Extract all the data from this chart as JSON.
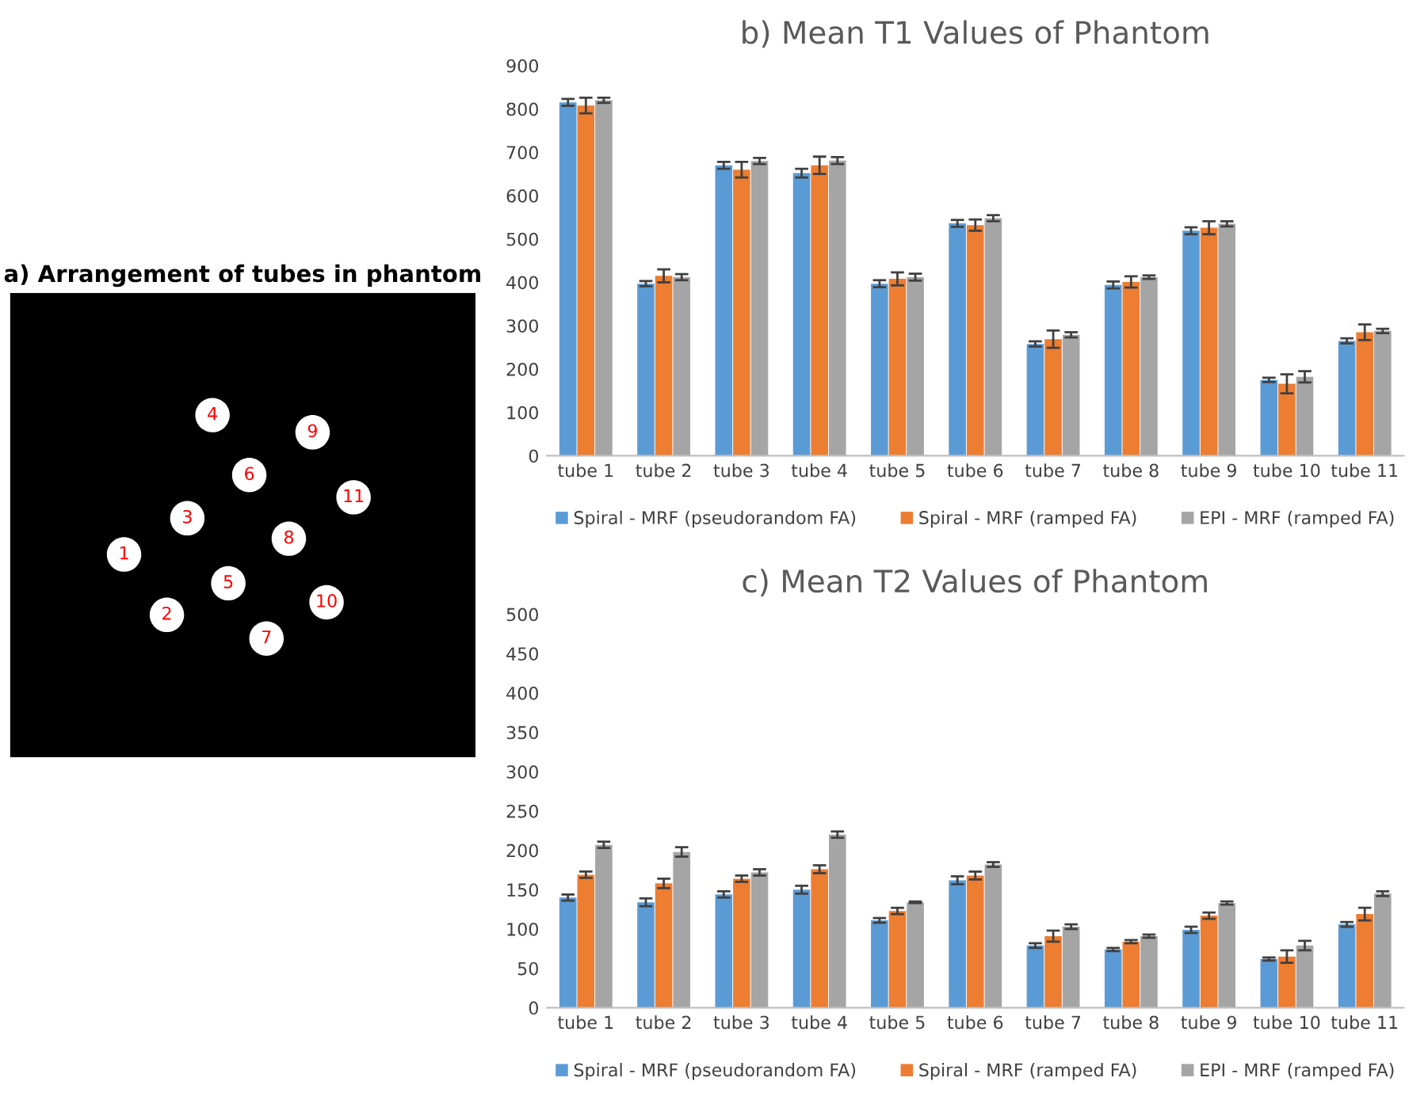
{
  "chart_data": [
    {
      "type": "other",
      "title": "a) Arrangement of tubes in phantom",
      "annotations": [
        "1",
        "2",
        "3",
        "4",
        "5",
        "6",
        "7",
        "8",
        "9",
        "10",
        "11"
      ]
    },
    {
      "type": "bar",
      "title": "b) Mean T1 Values of Phantom",
      "categories": [
        "tube 1",
        "tube 2",
        "tube 3",
        "tube 4",
        "tube 5",
        "tube 6",
        "tube 7",
        "tube 8",
        "tube 9",
        "tube 10",
        "tube 11"
      ],
      "series": [
        {
          "name": "Spiral - MRF (pseudorandom FA)",
          "color": "#5b9bd5",
          "values": [
            815,
            397,
            670,
            652,
            397,
            536,
            258,
            394,
            519,
            175,
            265
          ],
          "errors": [
            8,
            6,
            8,
            10,
            8,
            8,
            6,
            8,
            8,
            5,
            6
          ]
        },
        {
          "name": "Spiral - MRF (ramped FA)",
          "color": "#ed7d31",
          "values": [
            808,
            415,
            660,
            670,
            408,
            532,
            269,
            401,
            526,
            166,
            285
          ],
          "errors": [
            18,
            15,
            18,
            20,
            15,
            13,
            20,
            13,
            15,
            22,
            18
          ]
        },
        {
          "name": "EPI - MRF (ramped FA)",
          "color": "#a5a5a5",
          "values": [
            820,
            412,
            680,
            681,
            412,
            548,
            279,
            412,
            535,
            182,
            288
          ],
          "errors": [
            6,
            7,
            7,
            8,
            8,
            7,
            6,
            4,
            6,
            13,
            5
          ]
        }
      ],
      "ylim": [
        0,
        900
      ],
      "yticks": [
        0,
        100,
        200,
        300,
        400,
        500,
        600,
        700,
        800,
        900
      ],
      "grid": false,
      "legend": "bottom"
    },
    {
      "type": "bar",
      "title": "c) Mean T2 Values of Phantom",
      "categories": [
        "tube 1",
        "tube 2",
        "tube 3",
        "tube 4",
        "tube 5",
        "tube 6",
        "tube 7",
        "tube 8",
        "tube 9",
        "tube 10",
        "tube 11"
      ],
      "series": [
        {
          "name": "Spiral - MRF (pseudorandom FA)",
          "color": "#5b9bd5",
          "values": [
            140,
            134,
            144,
            150,
            111,
            162,
            79,
            74,
            99,
            62,
            106
          ],
          "errors": [
            4,
            5,
            4,
            5,
            3,
            5,
            3,
            2,
            4,
            2,
            3
          ]
        },
        {
          "name": "Spiral - MRF (ramped FA)",
          "color": "#ed7d31",
          "values": [
            169,
            158,
            164,
            176,
            123,
            168,
            91,
            84,
            117,
            65,
            119
          ],
          "errors": [
            4,
            6,
            4,
            5,
            4,
            5,
            7,
            2,
            4,
            8,
            8
          ]
        },
        {
          "name": "EPI - MRF (ramped FA)",
          "color": "#a5a5a5",
          "values": [
            207,
            198,
            172,
            220,
            134,
            182,
            103,
            91,
            133,
            79,
            145
          ],
          "errors": [
            4,
            6,
            4,
            4,
            1,
            3,
            3,
            2,
            2,
            6,
            3
          ]
        }
      ],
      "ylim": [
        0,
        500
      ],
      "yticks": [
        0,
        50,
        100,
        150,
        200,
        250,
        300,
        350,
        400,
        450,
        500
      ],
      "grid": false,
      "legend": "bottom"
    }
  ]
}
